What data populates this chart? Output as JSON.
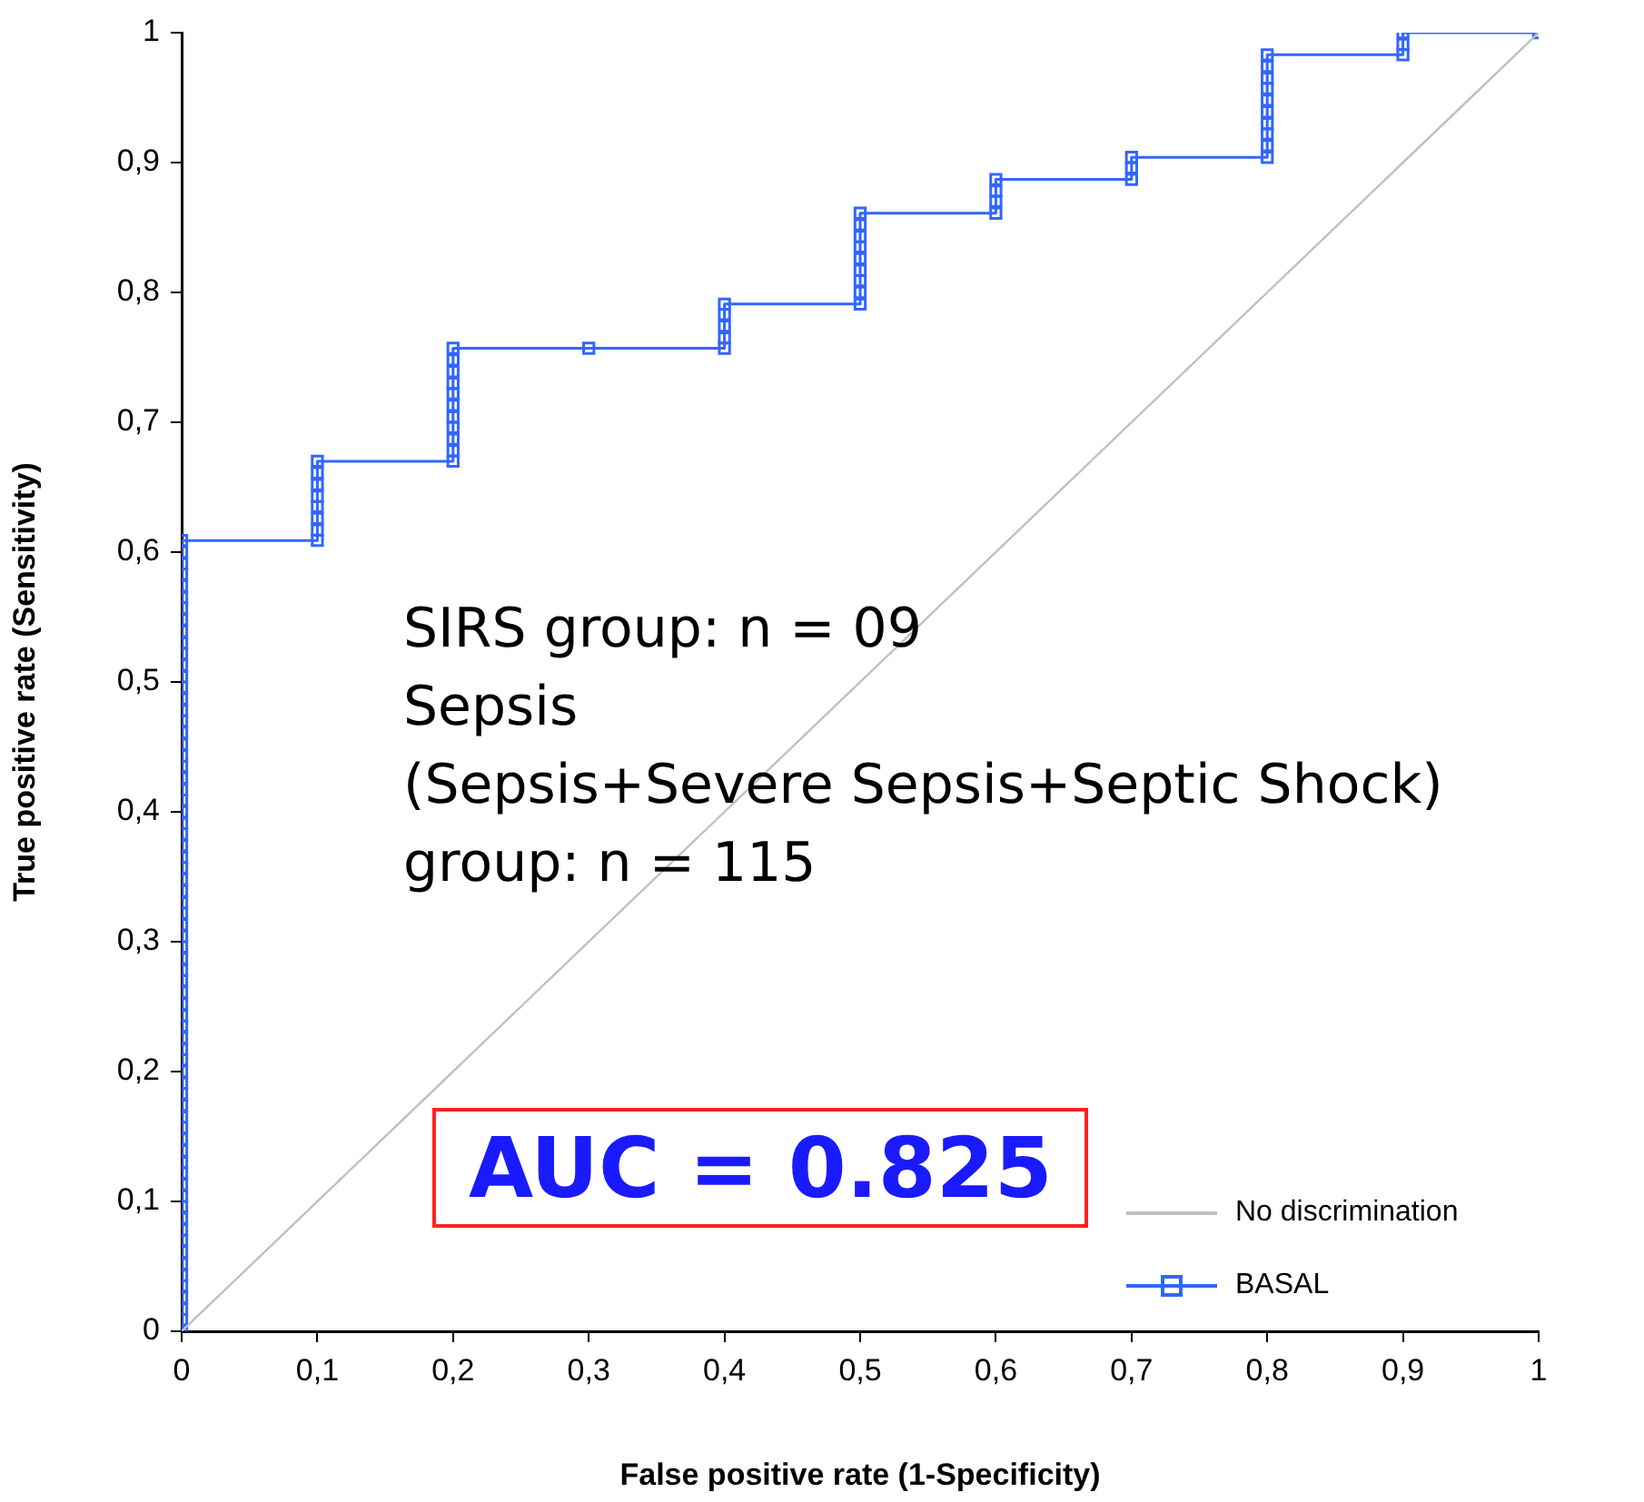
{
  "chart_data": {
    "type": "line",
    "xlabel": "False positive rate (1-Specificity)",
    "ylabel": "True positive rate (Sensitivity)",
    "xlim": [
      0,
      1
    ],
    "ylim": [
      0,
      1
    ],
    "xticks": [
      0,
      {
        "value": 0.1,
        "label": "0,1"
      },
      {
        "value": 0.2,
        "label": "0,2"
      },
      {
        "value": 0.3,
        "label": "0,3"
      },
      {
        "value": 0.4,
        "label": "0,4"
      },
      {
        "value": 0.5,
        "label": "0,5"
      },
      {
        "value": 0.6,
        "label": "0,6"
      },
      {
        "value": 0.7,
        "label": "0,7"
      },
      {
        "value": 0.8,
        "label": "0,8"
      },
      {
        "value": 0.9,
        "label": "0,9"
      },
      1
    ],
    "yticks": [
      0,
      {
        "value": 0.1,
        "label": "0,1"
      },
      {
        "value": 0.2,
        "label": "0,2"
      },
      {
        "value": 0.3,
        "label": "0,3"
      },
      {
        "value": 0.4,
        "label": "0,4"
      },
      {
        "value": 0.5,
        "label": "0,5"
      },
      {
        "value": 0.6,
        "label": "0,6"
      },
      {
        "value": 0.7,
        "label": "0,7"
      },
      {
        "value": 0.8,
        "label": "0,8"
      },
      {
        "value": 0.9,
        "label": "0,9"
      },
      1
    ],
    "grid": false,
    "legend": "bottom right",
    "series": [
      {
        "name": "No discrimination",
        "color": "#c0c0c0",
        "marker": "none",
        "x": [
          0,
          1
        ],
        "values": [
          0,
          1
        ]
      },
      {
        "name": "BASAL",
        "color": "#3366ff",
        "marker": "square",
        "x": [
          0,
          0,
          0,
          0,
          0,
          0,
          0,
          0,
          0,
          0,
          0,
          0,
          0,
          0,
          0,
          0,
          0,
          0,
          0,
          0,
          0,
          0,
          0,
          0,
          0,
          0,
          0,
          0,
          0,
          0,
          0,
          0,
          0,
          0,
          0,
          0,
          0,
          0,
          0,
          0,
          0,
          0,
          0,
          0,
          0,
          0,
          0,
          0,
          0,
          0,
          0,
          0,
          0,
          0,
          0,
          0,
          0,
          0,
          0,
          0,
          0,
          0,
          0,
          0,
          0,
          0,
          0,
          0,
          0,
          0,
          0,
          0.1,
          0.1,
          0.1,
          0.1,
          0.1,
          0.1,
          0.1,
          0.1,
          0.2,
          0.2,
          0.2,
          0.2,
          0.2,
          0.2,
          0.2,
          0.2,
          0.2,
          0.2,
          0.2,
          0.3,
          0.4,
          0.4,
          0.4,
          0.4,
          0.4,
          0.5,
          0.5,
          0.5,
          0.5,
          0.5,
          0.5,
          0.5,
          0.5,
          0.5,
          0.6,
          0.6,
          0.6,
          0.6,
          0.7,
          0.7,
          0.7,
          0.8,
          0.8,
          0.8,
          0.8,
          0.8,
          0.8,
          0.8,
          0.8,
          0.8,
          0.8,
          0.9,
          0.9,
          0.9,
          1
        ],
        "values": [
          0,
          0.009,
          0.017,
          0.026,
          0.035,
          0.043,
          0.052,
          0.061,
          0.07,
          0.078,
          0.087,
          0.096,
          0.104,
          0.113,
          0.122,
          0.13,
          0.139,
          0.148,
          0.157,
          0.165,
          0.174,
          0.183,
          0.191,
          0.2,
          0.209,
          0.217,
          0.226,
          0.235,
          0.243,
          0.252,
          0.261,
          0.27,
          0.278,
          0.287,
          0.296,
          0.304,
          0.313,
          0.322,
          0.33,
          0.339,
          0.348,
          0.357,
          0.365,
          0.374,
          0.383,
          0.391,
          0.4,
          0.409,
          0.417,
          0.426,
          0.435,
          0.443,
          0.452,
          0.461,
          0.47,
          0.478,
          0.487,
          0.496,
          0.504,
          0.513,
          0.522,
          0.53,
          0.539,
          0.548,
          0.557,
          0.565,
          0.574,
          0.583,
          0.591,
          0.6,
          0.609,
          0.609,
          0.617,
          0.626,
          0.635,
          0.643,
          0.652,
          0.661,
          0.67,
          0.67,
          0.678,
          0.687,
          0.696,
          0.704,
          0.713,
          0.722,
          0.73,
          0.739,
          0.748,
          0.757,
          0.757,
          0.757,
          0.765,
          0.774,
          0.783,
          0.791,
          0.791,
          0.8,
          0.809,
          0.817,
          0.826,
          0.835,
          0.843,
          0.852,
          0.861,
          0.861,
          0.87,
          0.878,
          0.887,
          0.887,
          0.896,
          0.904,
          0.904,
          0.913,
          0.922,
          0.93,
          0.939,
          0.948,
          0.957,
          0.965,
          0.974,
          0.983,
          0.983,
          0.991,
          1,
          1
        ]
      }
    ],
    "annotations": [
      "SIRS group: n = 09",
      "Sepsis",
      "(Sepsis+Severe Sepsis+Septic Shock)",
      "group: n = 115",
      "AUC = 0.825"
    ]
  }
}
